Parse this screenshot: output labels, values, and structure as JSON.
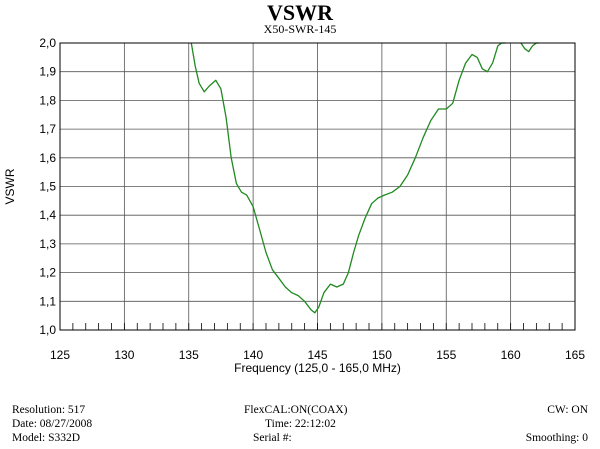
{
  "chart_data": {
    "type": "line",
    "title": "VSWR",
    "subtitle": "X50-SWR-145",
    "xlabel": "Frequency (125,0 - 165,0 MHz)",
    "ylabel": "VSWR",
    "xlim": [
      125,
      165
    ],
    "ylim": [
      1.0,
      2.0
    ],
    "x_ticks": [
      "125",
      "130",
      "135",
      "140",
      "145",
      "150",
      "155",
      "160",
      "165"
    ],
    "y_ticks": [
      "1,0",
      "1,1",
      "1,2",
      "1,3",
      "1,4",
      "1,5",
      "1,6",
      "1,7",
      "1,8",
      "1,9",
      "2,0"
    ],
    "grid": true,
    "line_color": "#1f8a1f",
    "series": [
      {
        "x": [
          135.2,
          135.5,
          135.8,
          136.2,
          136.6,
          137.1,
          137.5,
          137.9,
          138.3,
          138.7,
          139.1,
          139.5,
          140.0,
          140.5,
          141.0,
          141.5,
          142.0,
          142.5,
          143.0,
          143.5,
          144.0,
          144.5,
          144.8,
          145.1,
          145.5,
          146.0,
          146.5,
          147.0,
          147.4,
          147.8,
          148.2,
          148.7,
          149.2,
          149.7,
          150.2,
          150.8,
          151.4,
          152.0,
          152.6,
          153.2,
          153.8,
          154.4,
          155.0,
          155.5,
          156.0,
          156.5,
          157.0,
          157.4,
          157.8,
          158.2,
          158.6,
          159.0,
          159.3,
          159.6
        ],
        "y": [
          2.0,
          1.92,
          1.86,
          1.83,
          1.85,
          1.87,
          1.84,
          1.74,
          1.6,
          1.51,
          1.48,
          1.47,
          1.43,
          1.35,
          1.27,
          1.21,
          1.18,
          1.15,
          1.13,
          1.12,
          1.1,
          1.07,
          1.06,
          1.08,
          1.13,
          1.16,
          1.15,
          1.16,
          1.2,
          1.27,
          1.33,
          1.39,
          1.44,
          1.46,
          1.47,
          1.48,
          1.5,
          1.54,
          1.6,
          1.67,
          1.73,
          1.77,
          1.77,
          1.79,
          1.87,
          1.93,
          1.96,
          1.95,
          1.91,
          1.9,
          1.93,
          1.99,
          2.0,
          2.0
        ]
      },
      {
        "x": [
          160.8,
          161.1,
          161.4,
          161.7,
          162.0,
          162.2
        ],
        "y": [
          2.0,
          1.98,
          1.97,
          1.99,
          2.0,
          2.0
        ]
      }
    ]
  },
  "footer": {
    "resolution": "Resolution:  517",
    "date": "Date: 08/27/2008",
    "model": "Model:  S332D",
    "flexcal": "FlexCAL:ON(COAX)",
    "time": "Time:  22:12:02",
    "serial": "Serial #:",
    "cw": "CW: ON",
    "smoothing": "Smoothing:  0"
  }
}
